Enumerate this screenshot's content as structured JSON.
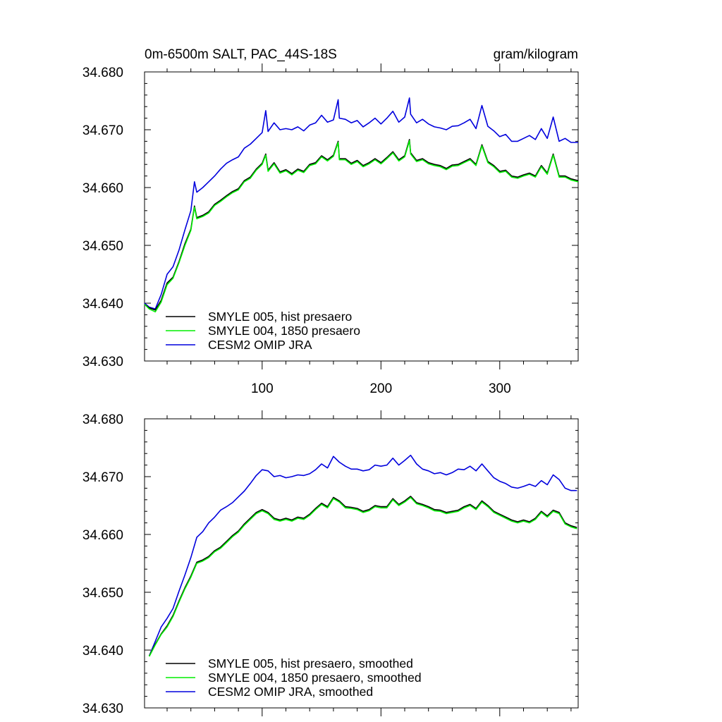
{
  "chart_data": [
    {
      "type": "line",
      "title_left": "0m-6500m SALT, PAC_44S-18S",
      "title_right": "gram/kilogram",
      "xlim": [
        1,
        366
      ],
      "ylim": [
        34.63,
        34.68
      ],
      "xticks": [
        100,
        200,
        300
      ],
      "xtick_labels": [
        "100",
        "200",
        "300"
      ],
      "yticks": [
        34.63,
        34.64,
        34.65,
        34.66,
        34.67,
        34.68
      ],
      "ytick_labels": [
        "34.630",
        "34.640",
        "34.650",
        "34.660",
        "34.670",
        "34.680"
      ],
      "legend_position": "bottom-left",
      "x": [
        1,
        5,
        10,
        15,
        20,
        25,
        30,
        35,
        40,
        43,
        45,
        50,
        55,
        60,
        65,
        70,
        75,
        80,
        85,
        90,
        95,
        100,
        103,
        105,
        110,
        115,
        120,
        125,
        130,
        135,
        140,
        145,
        150,
        155,
        160,
        164,
        165,
        170,
        175,
        180,
        185,
        190,
        195,
        200,
        205,
        210,
        215,
        220,
        224,
        225,
        230,
        235,
        240,
        245,
        250,
        255,
        260,
        265,
        270,
        275,
        280,
        285,
        290,
        295,
        300,
        305,
        310,
        315,
        320,
        325,
        330,
        335,
        340,
        345,
        350,
        355,
        360,
        366
      ],
      "series": [
        {
          "name": "SMYLE 005, hist presaero",
          "color": "#000000",
          "values": [
            34.6398,
            34.6392,
            34.6388,
            34.6405,
            34.6435,
            34.6445,
            34.6472,
            34.6503,
            34.6528,
            34.6568,
            34.6548,
            34.6552,
            34.6558,
            34.6571,
            34.6578,
            34.6586,
            34.6593,
            34.6598,
            34.6612,
            34.6618,
            34.6632,
            34.6642,
            34.6658,
            34.663,
            34.6643,
            34.6627,
            34.6631,
            34.6624,
            34.6632,
            34.6628,
            34.664,
            34.6643,
            34.6655,
            34.6648,
            34.6656,
            34.668,
            34.665,
            34.665,
            34.6642,
            34.6647,
            34.6638,
            34.6643,
            34.665,
            34.6643,
            34.6652,
            34.6662,
            34.6648,
            34.6655,
            34.6683,
            34.666,
            34.6647,
            34.665,
            34.6643,
            34.664,
            34.6638,
            34.6633,
            34.6639,
            34.664,
            34.6645,
            34.665,
            34.664,
            34.6674,
            34.6645,
            34.6638,
            34.6628,
            34.663,
            34.662,
            34.6618,
            34.6622,
            34.6625,
            34.662,
            34.6638,
            34.6625,
            34.6658,
            34.662,
            34.662,
            34.6615,
            34.6612
          ]
        },
        {
          "name": "SMYLE 004, 1850 presaero",
          "color": "#00ee00",
          "values": [
            34.6398,
            34.639,
            34.6385,
            34.6402,
            34.6432,
            34.6443,
            34.647,
            34.65,
            34.6526,
            34.6566,
            34.6546,
            34.655,
            34.6556,
            34.6569,
            34.6576,
            34.6584,
            34.6591,
            34.6596,
            34.661,
            34.6616,
            34.663,
            34.664,
            34.6656,
            34.6628,
            34.6641,
            34.6625,
            34.6629,
            34.6622,
            34.663,
            34.6626,
            34.6638,
            34.6641,
            34.6653,
            34.6646,
            34.6654,
            34.6678,
            34.6648,
            34.6648,
            34.664,
            34.6645,
            34.6636,
            34.6641,
            34.6648,
            34.6641,
            34.665,
            34.666,
            34.6646,
            34.6653,
            34.6681,
            34.6658,
            34.6645,
            34.6648,
            34.6641,
            34.6638,
            34.6636,
            34.6631,
            34.6637,
            34.6638,
            34.6643,
            34.6648,
            34.6638,
            34.6672,
            34.6643,
            34.6636,
            34.6626,
            34.6628,
            34.6618,
            34.6616,
            34.662,
            34.6623,
            34.6618,
            34.6636,
            34.6623,
            34.6656,
            34.6618,
            34.6618,
            34.6613,
            34.661
          ]
        },
        {
          "name": "CESM2 OMIP JRA",
          "color": "#0000dd",
          "values": [
            34.64,
            34.6393,
            34.639,
            34.6415,
            34.645,
            34.6463,
            34.6492,
            34.6527,
            34.656,
            34.661,
            34.6592,
            34.66,
            34.661,
            34.662,
            34.6632,
            34.6642,
            34.6648,
            34.6653,
            34.6668,
            34.6675,
            34.6685,
            34.6695,
            34.6733,
            34.6697,
            34.6712,
            34.67,
            34.6702,
            34.67,
            34.6705,
            34.6698,
            34.6708,
            34.6712,
            34.6725,
            34.6713,
            34.6717,
            34.6752,
            34.672,
            34.6718,
            34.6712,
            34.6716,
            34.6705,
            34.6712,
            34.672,
            34.671,
            34.672,
            34.6732,
            34.6713,
            34.6722,
            34.6755,
            34.6727,
            34.6712,
            34.6718,
            34.671,
            34.6705,
            34.6703,
            34.67,
            34.6706,
            34.6707,
            34.6712,
            34.6718,
            34.6702,
            34.6742,
            34.6706,
            34.6698,
            34.6688,
            34.6692,
            34.668,
            34.668,
            34.6685,
            34.669,
            34.6683,
            34.6702,
            34.6685,
            34.6722,
            34.668,
            34.6685,
            34.6678,
            34.6678
          ]
        }
      ]
    },
    {
      "type": "line",
      "xlim": [
        1,
        366
      ],
      "ylim": [
        34.63,
        34.68
      ],
      "xticks": [
        100,
        200,
        300
      ],
      "yticks": [
        34.63,
        34.64,
        34.65,
        34.66,
        34.67,
        34.68
      ],
      "ytick_labels": [
        "34.630",
        "34.640",
        "34.650",
        "34.660",
        "34.670",
        "34.680"
      ],
      "legend_position": "bottom-left",
      "x": [
        5,
        10,
        15,
        20,
        25,
        30,
        35,
        40,
        45,
        50,
        55,
        60,
        65,
        70,
        75,
        80,
        85,
        90,
        95,
        100,
        105,
        110,
        115,
        120,
        125,
        130,
        135,
        140,
        145,
        150,
        155,
        160,
        165,
        170,
        175,
        180,
        185,
        190,
        195,
        200,
        205,
        210,
        215,
        220,
        225,
        230,
        235,
        240,
        245,
        250,
        255,
        260,
        265,
        270,
        275,
        280,
        285,
        290,
        295,
        300,
        305,
        310,
        315,
        320,
        325,
        330,
        335,
        340,
        345,
        350,
        355,
        360,
        365
      ],
      "series": [
        {
          "name": "SMYLE 005, hist presaero, smoothed",
          "color": "#000000",
          "values": [
            34.639,
            34.641,
            34.6428,
            34.6442,
            34.646,
            34.6485,
            34.6508,
            34.6528,
            34.6552,
            34.6556,
            34.6562,
            34.6572,
            34.6578,
            34.6588,
            34.6598,
            34.6606,
            34.6618,
            34.6628,
            34.6638,
            34.6643,
            34.6638,
            34.6628,
            34.6625,
            34.6628,
            34.6625,
            34.663,
            34.6628,
            34.6635,
            34.6645,
            34.6654,
            34.6648,
            34.6664,
            34.6658,
            34.6648,
            34.6647,
            34.6645,
            34.664,
            34.6643,
            34.665,
            34.6648,
            34.6648,
            34.6662,
            34.6652,
            34.6658,
            34.6666,
            34.6655,
            34.6652,
            34.6648,
            34.6643,
            34.6642,
            34.6638,
            34.664,
            34.6642,
            34.6648,
            34.6652,
            34.6645,
            34.6658,
            34.665,
            34.664,
            34.6635,
            34.663,
            34.6625,
            34.6622,
            34.6625,
            34.6622,
            34.6628,
            34.664,
            34.6632,
            34.6642,
            34.6638,
            34.662,
            34.6615,
            34.6612
          ]
        },
        {
          "name": "SMYLE 004, 1850 presaero, smoothed",
          "color": "#00ee00",
          "values": [
            34.6389,
            34.6409,
            34.6427,
            34.644,
            34.6458,
            34.6483,
            34.6506,
            34.6526,
            34.655,
            34.6554,
            34.656,
            34.657,
            34.6576,
            34.6586,
            34.6596,
            34.6604,
            34.6616,
            34.6626,
            34.6636,
            34.6641,
            34.6636,
            34.6626,
            34.6623,
            34.6626,
            34.6623,
            34.6628,
            34.6626,
            34.6633,
            34.6643,
            34.6652,
            34.6646,
            34.6662,
            34.6656,
            34.6646,
            34.6645,
            34.6643,
            34.6638,
            34.6641,
            34.6648,
            34.6646,
            34.6646,
            34.666,
            34.665,
            34.6656,
            34.6664,
            34.6653,
            34.665,
            34.6646,
            34.6641,
            34.664,
            34.6636,
            34.6638,
            34.664,
            34.6646,
            34.665,
            34.6643,
            34.6656,
            34.6648,
            34.6638,
            34.6633,
            34.6628,
            34.6623,
            34.662,
            34.6623,
            34.662,
            34.6626,
            34.6638,
            34.663,
            34.664,
            34.6636,
            34.6618,
            34.6613,
            34.661
          ]
        },
        {
          "name": "CESM2 OMIP JRA, smoothed",
          "color": "#0000dd",
          "values": [
            34.639,
            34.6415,
            34.644,
            34.6455,
            34.6472,
            34.6502,
            34.653,
            34.656,
            34.6595,
            34.6605,
            34.662,
            34.663,
            34.6642,
            34.6648,
            34.6655,
            34.6665,
            34.6675,
            34.6688,
            34.6702,
            34.6712,
            34.671,
            34.67,
            34.6702,
            34.6698,
            34.67,
            34.6703,
            34.6702,
            34.6705,
            34.6712,
            34.6722,
            34.6715,
            34.6735,
            34.6725,
            34.6718,
            34.6713,
            34.6713,
            34.671,
            34.6712,
            34.672,
            34.6718,
            34.672,
            34.6732,
            34.672,
            34.6728,
            34.6737,
            34.6722,
            34.6713,
            34.671,
            34.6705,
            34.6707,
            34.6703,
            34.6707,
            34.6713,
            34.6712,
            34.6718,
            34.671,
            34.6722,
            34.671,
            34.6698,
            34.6692,
            34.6688,
            34.6682,
            34.668,
            34.6683,
            34.6687,
            34.6683,
            34.6693,
            34.6686,
            34.6703,
            34.6695,
            34.668,
            34.6676,
            34.6676
          ]
        }
      ]
    }
  ]
}
